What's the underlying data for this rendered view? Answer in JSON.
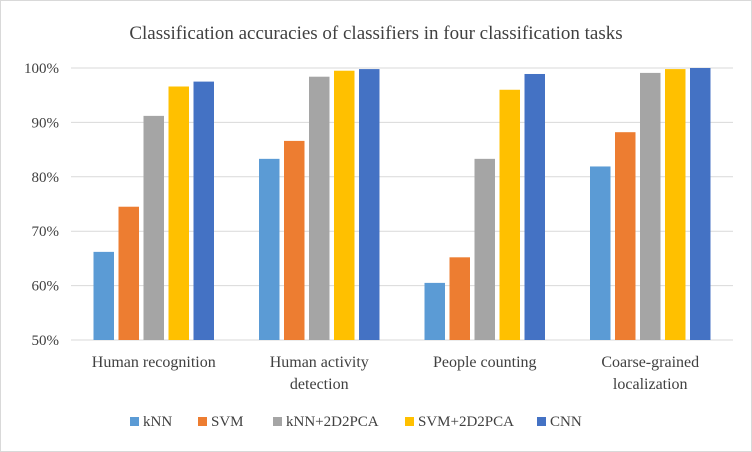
{
  "chart_data": {
    "type": "bar",
    "title": "Classification accuracies of classifiers in four classification tasks",
    "xlabel": "",
    "ylabel": "",
    "ylim": [
      50,
      100
    ],
    "yticks": [
      "50%",
      "60%",
      "70%",
      "80%",
      "90%",
      "100%"
    ],
    "ytick_values": [
      50,
      60,
      70,
      80,
      90,
      100
    ],
    "grid": true,
    "legend_position": "bottom",
    "categories": [
      [
        "Human recognition"
      ],
      [
        "Human activity",
        "detection"
      ],
      [
        "People counting"
      ],
      [
        "Coarse-grained",
        "localization"
      ]
    ],
    "series": [
      {
        "name": "kNN",
        "color": "#5b9bd5",
        "values": [
          66.2,
          83.3,
          60.5,
          81.9
        ]
      },
      {
        "name": "SVM",
        "color": "#ed7d31",
        "values": [
          74.5,
          86.6,
          65.2,
          88.2
        ]
      },
      {
        "name": "kNN+2D2PCA",
        "color": "#a5a5a5",
        "values": [
          91.2,
          98.4,
          83.3,
          99.1
        ]
      },
      {
        "name": "SVM+2D2PCA",
        "color": "#ffc000",
        "values": [
          96.6,
          99.5,
          96.0,
          99.8
        ]
      },
      {
        "name": "CNN",
        "color": "#4472c4",
        "values": [
          97.5,
          99.8,
          98.9,
          100.0
        ]
      }
    ]
  }
}
